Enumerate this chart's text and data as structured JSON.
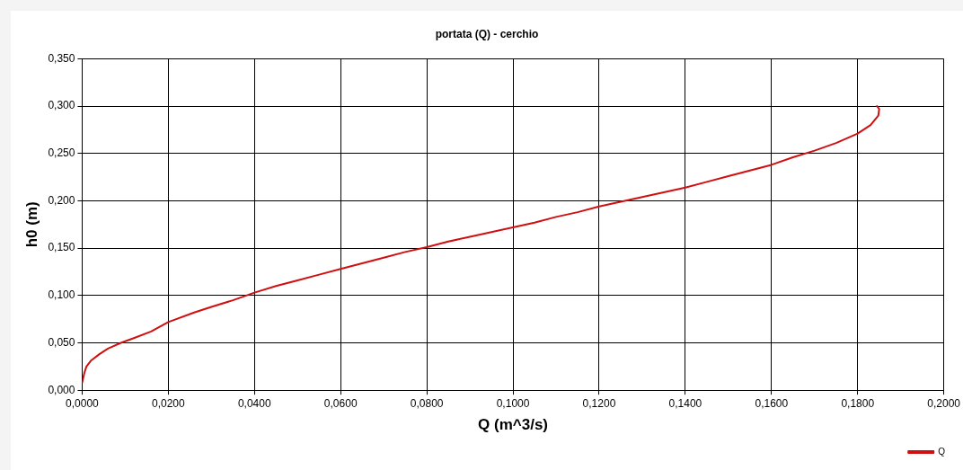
{
  "chart_data": {
    "type": "line",
    "title": "portata (Q) - cerchio",
    "xlabel": "Q (m^3/s)",
    "ylabel": "h0 (m)",
    "xlim": [
      0,
      0.2
    ],
    "ylim": [
      0,
      0.35
    ],
    "xticks": [
      {
        "value": 0,
        "label": "0,0000"
      },
      {
        "value": 0.02,
        "label": "0,0200"
      },
      {
        "value": 0.04,
        "label": "0,0400"
      },
      {
        "value": 0.06,
        "label": "0,0600"
      },
      {
        "value": 0.08,
        "label": "0,0800"
      },
      {
        "value": 0.1,
        "label": "0,1000"
      },
      {
        "value": 0.12,
        "label": "0,1200"
      },
      {
        "value": 0.14,
        "label": "0,1400"
      },
      {
        "value": 0.16,
        "label": "0,1600"
      },
      {
        "value": 0.18,
        "label": "0,1800"
      },
      {
        "value": 0.2,
        "label": "0,2000"
      }
    ],
    "yticks": [
      {
        "value": 0,
        "label": "0,000"
      },
      {
        "value": 0.05,
        "label": "0,050"
      },
      {
        "value": 0.1,
        "label": "0,100"
      },
      {
        "value": 0.15,
        "label": "0,150"
      },
      {
        "value": 0.2,
        "label": "0,200"
      },
      {
        "value": 0.25,
        "label": "0,250"
      },
      {
        "value": 0.3,
        "label": "0,300"
      },
      {
        "value": 0.35,
        "label": "0,350"
      }
    ],
    "grid": true,
    "legend": "bottom right",
    "marker": "none",
    "line_style": "solid",
    "series": [
      {
        "name": "Q",
        "color": "#d01010",
        "x": [
          0,
          0.0005,
          0.001,
          0.002,
          0.004,
          0.006,
          0.009,
          0.012,
          0.016,
          0.02,
          0.026,
          0.03,
          0.035,
          0.04,
          0.045,
          0.05,
          0.055,
          0.06,
          0.065,
          0.07,
          0.075,
          0.08,
          0.085,
          0.09,
          0.095,
          0.1,
          0.105,
          0.11,
          0.115,
          0.12,
          0.125,
          0.13,
          0.135,
          0.14,
          0.145,
          0.15,
          0.155,
          0.16,
          0.165,
          0.17,
          0.175,
          0.18,
          0.183,
          0.1848,
          0.185,
          0.1845
        ],
        "values": [
          0.008,
          0.018,
          0.025,
          0.031,
          0.038,
          0.044,
          0.05,
          0.055,
          0.062,
          0.072,
          0.082,
          0.088,
          0.095,
          0.103,
          0.11,
          0.116,
          0.122,
          0.128,
          0.134,
          0.14,
          0.146,
          0.151,
          0.157,
          0.162,
          0.167,
          0.172,
          0.177,
          0.183,
          0.188,
          0.194,
          0.199,
          0.204,
          0.209,
          0.214,
          0.22,
          0.226,
          0.232,
          0.238,
          0.246,
          0.253,
          0.261,
          0.271,
          0.28,
          0.29,
          0.297,
          0.3
        ]
      }
    ]
  }
}
